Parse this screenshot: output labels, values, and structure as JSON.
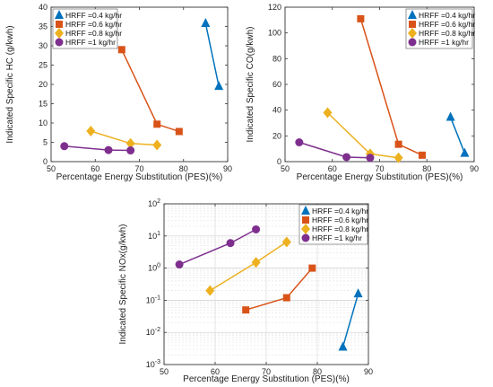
{
  "chart_data": [
    {
      "type": "line",
      "xlabel": "Percentage Energy Substitution (PES)(%)",
      "ylabel": "Indicated Specific HC (g/kwh)",
      "xlim": [
        50,
        90
      ],
      "ylim": [
        0,
        40
      ],
      "xticks": [
        "50",
        "60",
        "70",
        "80",
        "90"
      ],
      "yticks": [
        "0",
        "5",
        "10",
        "15",
        "20",
        "25",
        "30",
        "35",
        "40"
      ],
      "yscale": "linear",
      "grid": false,
      "legend": "top-left",
      "series": [
        {
          "name": "HRFF =0.4 kg/hr",
          "color": "#0072BD",
          "marker": "triangle",
          "x": [
            85,
            88
          ],
          "y": [
            35.8,
            19.5
          ]
        },
        {
          "name": "HRFF =0.6 kg/hr",
          "color": "#D95319",
          "marker": "square",
          "x": [
            66,
            74,
            79
          ],
          "y": [
            29.0,
            9.7,
            7.8
          ]
        },
        {
          "name": "HRFF =0.8 kg/hr",
          "color": "#EDB120",
          "marker": "diamond",
          "x": [
            59,
            68,
            74
          ],
          "y": [
            7.9,
            4.7,
            4.3
          ]
        },
        {
          "name": "HRFF =1 kg/hr",
          "color": "#7E2F8E",
          "marker": "circle",
          "x": [
            53,
            63,
            68
          ],
          "y": [
            4.0,
            3.0,
            2.9
          ]
        }
      ]
    },
    {
      "type": "line",
      "xlabel": "Percentage Energy Substitution (PES)(%)",
      "ylabel": "Indicated Specific CO(g/kwh)",
      "xlim": [
        50,
        90
      ],
      "ylim": [
        0,
        120
      ],
      "xticks": [
        "50",
        "60",
        "70",
        "80",
        "90"
      ],
      "yticks": [
        "0",
        "20",
        "40",
        "60",
        "80",
        "100",
        "120"
      ],
      "yscale": "linear",
      "grid": false,
      "legend": "top-right",
      "series": [
        {
          "name": "HRFF =0.4 kg/hr",
          "color": "#0072BD",
          "marker": "triangle",
          "x": [
            85,
            88
          ],
          "y": [
            34.5,
            6.5
          ]
        },
        {
          "name": "HRFF =0.6 kg/hr",
          "color": "#D95319",
          "marker": "square",
          "x": [
            66,
            74,
            79
          ],
          "y": [
            111,
            13.5,
            5.0
          ]
        },
        {
          "name": "HRFF =0.8 kg/hr",
          "color": "#EDB120",
          "marker": "diamond",
          "x": [
            59,
            68,
            74
          ],
          "y": [
            38,
            6.0,
            3.0
          ]
        },
        {
          "name": "HRFF =1 kg/hr",
          "color": "#7E2F8E",
          "marker": "circle",
          "x": [
            53,
            63,
            68
          ],
          "y": [
            15,
            3.5,
            3.0
          ]
        }
      ]
    },
    {
      "type": "line",
      "xlabel": "Percentage Energy Substitution (PES)(%)",
      "ylabel": "Indicated Specific NOx(g/kwh)",
      "xlim": [
        50,
        90
      ],
      "ylim": [
        0.001,
        100
      ],
      "xticks": [
        "50",
        "60",
        "70",
        "80",
        "90"
      ],
      "yticks": [
        "10-3",
        "10-2",
        "10-1",
        "100",
        "101",
        "102"
      ],
      "yscale": "log",
      "grid": true,
      "legend": "top-right",
      "series": [
        {
          "name": "HRFF =0.4 kg/hr",
          "color": "#0072BD",
          "marker": "triangle",
          "x": [
            85,
            88
          ],
          "y": [
            0.0035,
            0.16
          ]
        },
        {
          "name": "HRFF =0.6 kg/hr",
          "color": "#D95319",
          "marker": "square",
          "x": [
            66,
            74,
            79
          ],
          "y": [
            0.05,
            0.12,
            1.0
          ]
        },
        {
          "name": "HRFF =0.8 kg/hr",
          "color": "#EDB120",
          "marker": "diamond",
          "x": [
            59,
            68,
            74
          ],
          "y": [
            0.2,
            1.5,
            6.5
          ]
        },
        {
          "name": "HRFF =1 kg/hr",
          "color": "#7E2F8E",
          "marker": "circle",
          "x": [
            53,
            63,
            68
          ],
          "y": [
            1.3,
            6.0,
            16.0
          ]
        }
      ]
    }
  ]
}
